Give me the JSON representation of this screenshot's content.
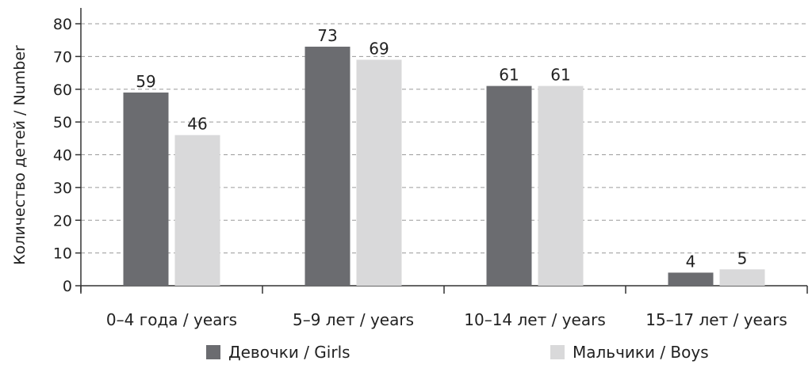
{
  "chart_data": {
    "type": "bar",
    "ylabel": "Количество детей / Number",
    "categories": [
      "0–4 года / years",
      "5–9 лет / years",
      "10–14 лет / years",
      "15–17 лет / years"
    ],
    "series": [
      {
        "name": "Девочки / Girls",
        "color": "#6b6c70",
        "values": [
          59,
          73,
          61,
          4
        ]
      },
      {
        "name": "Мальчики / Boys",
        "color": "#d9d9da",
        "values": [
          46,
          69,
          61,
          5
        ]
      }
    ],
    "ylim": [
      0,
      80
    ],
    "yticks": [
      0,
      10,
      20,
      30,
      40,
      50,
      60,
      70,
      80
    ],
    "grid": true,
    "legend_position": "bottom"
  }
}
